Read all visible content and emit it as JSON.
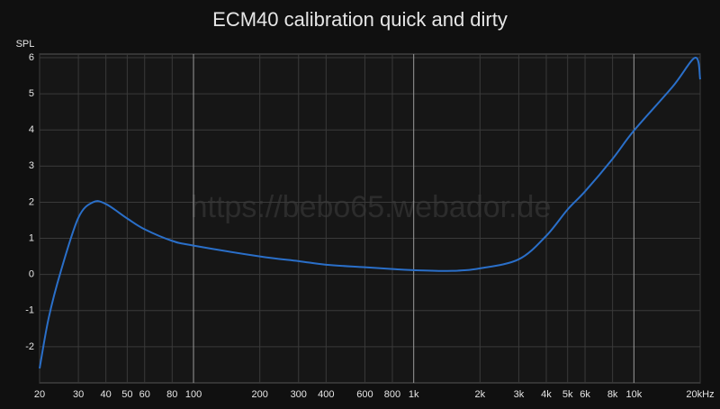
{
  "chart_data": {
    "type": "line",
    "title": "ECM40 calibration quick and dirty",
    "y_label": "SPL",
    "watermark": "https://bebo65.webador.de",
    "x": [
      20,
      22,
      25,
      30,
      35,
      40,
      50,
      60,
      80,
      100,
      200,
      300,
      400,
      600,
      800,
      1000,
      1500,
      2000,
      3000,
      4000,
      5000,
      6000,
      8000,
      10000,
      15000,
      19000,
      20000
    ],
    "series": [
      {
        "name": "ECM40",
        "color": "#2a6fc9",
        "values": [
          -2.6,
          -1.2,
          0.1,
          1.57,
          2.0,
          1.95,
          1.55,
          1.25,
          0.93,
          0.8,
          0.5,
          0.37,
          0.27,
          0.2,
          0.15,
          0.12,
          0.1,
          0.17,
          0.42,
          1.07,
          1.8,
          2.3,
          3.2,
          3.98,
          5.2,
          6.0,
          5.4
        ]
      }
    ],
    "xscale": "log",
    "xlim": [
      20,
      20000
    ],
    "ylim": [
      -3,
      6.1
    ],
    "xticks": [
      20,
      30,
      40,
      50,
      60,
      80,
      100,
      200,
      300,
      400,
      600,
      800,
      {
        "value": 1000,
        "label": "1k"
      },
      {
        "value": 2000,
        "label": "2k"
      },
      {
        "value": 3000,
        "label": "3k"
      },
      {
        "value": 4000,
        "label": "4k"
      },
      {
        "value": 5000,
        "label": "5k"
      },
      {
        "value": 6000,
        "label": "6k"
      },
      {
        "value": 8000,
        "label": "8k"
      },
      {
        "value": 10000,
        "label": "10k"
      },
      {
        "value": 20000,
        "label": "20kHz"
      }
    ],
    "major_xticks": [
      100,
      1000,
      10000
    ],
    "yticks": [
      -2,
      -1,
      0,
      1,
      2,
      3,
      4,
      5,
      6
    ],
    "grid": true
  }
}
